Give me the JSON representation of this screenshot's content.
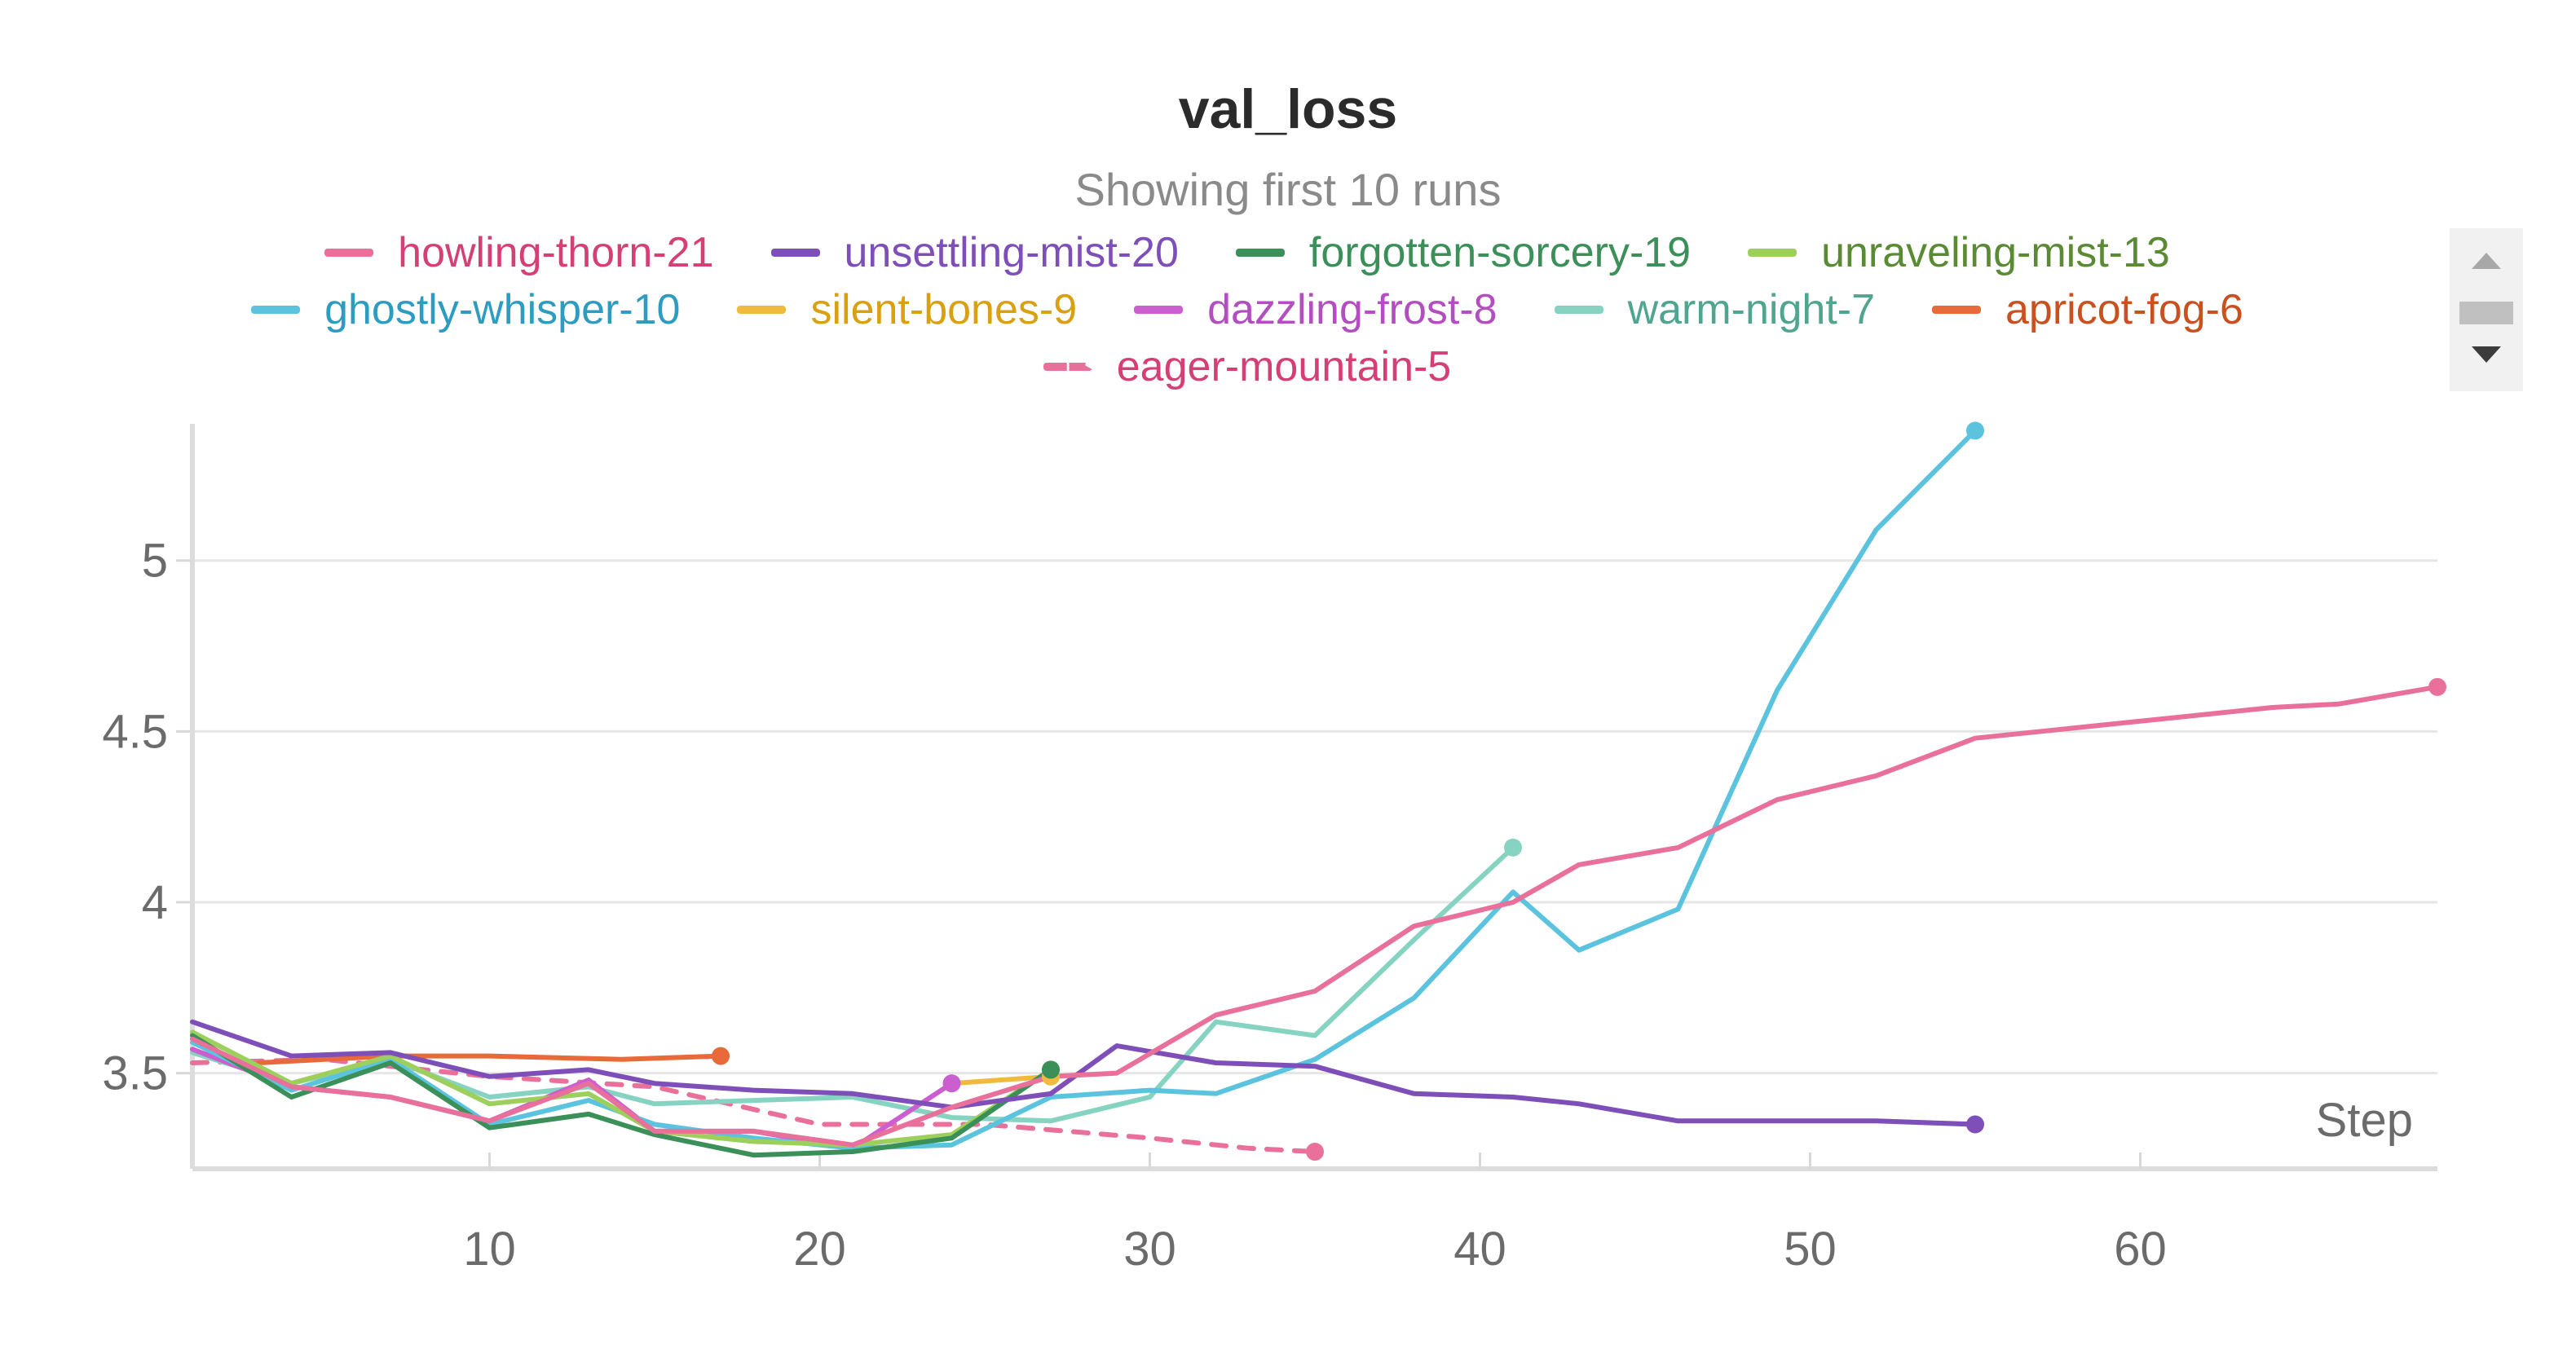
{
  "panel": {
    "title": "val_loss",
    "subtitle": "Showing first 10 runs"
  },
  "legend": {
    "rows": [
      [
        0,
        1,
        2,
        3
      ],
      [
        4,
        5,
        6,
        7,
        8
      ],
      [
        9
      ]
    ],
    "scroll_up_icon": "caret-up-icon",
    "scroll_down_icon": "caret-down-icon"
  },
  "chart_data": {
    "type": "line",
    "title": "val_loss",
    "subtitle": "Showing first 10 runs",
    "xlabel": "Step",
    "ylabel": "",
    "xlim": [
      1,
      69
    ],
    "ylim": [
      3.22,
      5.4
    ],
    "xticks": [
      10,
      20,
      30,
      40,
      50,
      60
    ],
    "yticks": [
      3.5,
      4,
      4.5,
      5
    ],
    "ytick_labels": [
      "3.5",
      "4",
      "4.5",
      "5"
    ],
    "grid": true,
    "legend_position": "top",
    "series": [
      {
        "name": "howling-thorn-21",
        "color": "#e8709a",
        "text_color": "#d43f75",
        "dashed": false,
        "x": [
          1,
          4,
          7,
          10,
          13,
          15,
          18,
          21,
          24,
          27,
          29,
          32,
          35,
          38,
          41,
          43,
          46,
          49,
          52,
          55,
          58,
          61,
          64,
          66,
          69
        ],
        "y": [
          3.6,
          3.46,
          3.43,
          3.36,
          3.47,
          3.33,
          3.33,
          3.29,
          3.4,
          3.49,
          3.5,
          3.67,
          3.74,
          3.93,
          4.0,
          4.11,
          4.16,
          4.3,
          4.37,
          4.48,
          4.51,
          4.54,
          4.57,
          4.58,
          4.63
        ]
      },
      {
        "name": "unsettling-mist-20",
        "color": "#7e4fb8",
        "text_color": "#7e4fb8",
        "dashed": false,
        "x": [
          1,
          4,
          7,
          10,
          13,
          15,
          18,
          21,
          24,
          27,
          29,
          32,
          35,
          38,
          41,
          43,
          46,
          49,
          52,
          55
        ],
        "y": [
          3.65,
          3.55,
          3.56,
          3.49,
          3.51,
          3.47,
          3.45,
          3.44,
          3.4,
          3.44,
          3.58,
          3.53,
          3.52,
          3.44,
          3.43,
          3.41,
          3.36,
          3.36,
          3.36,
          3.35
        ]
      },
      {
        "name": "forgotten-sorcery-19",
        "color": "#3b8f58",
        "text_color": "#3b8f58",
        "dashed": false,
        "x": [
          1,
          4,
          7,
          10,
          13,
          15,
          18,
          21,
          24,
          27
        ],
        "y": [
          3.61,
          3.43,
          3.53,
          3.34,
          3.38,
          3.32,
          3.26,
          3.27,
          3.31,
          3.51
        ]
      },
      {
        "name": "unraveling-mist-13",
        "color": "#9dcf5c",
        "text_color": "#5a8a34",
        "dashed": false,
        "x": [
          1,
          4,
          7,
          10,
          13,
          15,
          18,
          21,
          24,
          27
        ],
        "y": [
          3.62,
          3.47,
          3.55,
          3.41,
          3.44,
          3.33,
          3.3,
          3.29,
          3.32,
          3.51
        ]
      },
      {
        "name": "ghostly-whisper-10",
        "color": "#5bc3de",
        "text_color": "#2e9cc0",
        "dashed": false,
        "x": [
          1,
          4,
          7,
          10,
          13,
          15,
          18,
          21,
          24,
          27,
          30,
          32,
          35,
          38,
          41,
          43,
          46,
          49,
          52,
          55
        ],
        "y": [
          3.59,
          3.45,
          3.54,
          3.35,
          3.42,
          3.35,
          3.31,
          3.28,
          3.29,
          3.43,
          3.45,
          3.44,
          3.54,
          3.72,
          4.03,
          3.86,
          3.98,
          4.62,
          5.09,
          5.38
        ]
      },
      {
        "name": "silent-bones-9",
        "color": "#f0bb3c",
        "text_color": "#d9a012",
        "dashed": false,
        "x": [
          24,
          27
        ],
        "y": [
          3.47,
          3.49
        ]
      },
      {
        "name": "dazzling-frost-8",
        "color": "#cc5fd0",
        "text_color": "#b24ec0",
        "dashed": false,
        "x": [
          1,
          4,
          7,
          10,
          13,
          15,
          18,
          21,
          24
        ],
        "y": [
          3.57,
          3.46,
          3.43,
          3.36,
          3.48,
          3.33,
          3.33,
          3.28,
          3.47
        ]
      },
      {
        "name": "warm-night-7",
        "color": "#86d3c2",
        "text_color": "#4fa58f",
        "dashed": false,
        "x": [
          1,
          4,
          7,
          10,
          13,
          15,
          18,
          21,
          24,
          27,
          30,
          32,
          35,
          38,
          41
        ],
        "y": [
          3.56,
          3.47,
          3.54,
          3.43,
          3.46,
          3.41,
          3.42,
          3.43,
          3.37,
          3.36,
          3.43,
          3.65,
          3.61,
          3.89,
          4.16
        ]
      },
      {
        "name": "apricot-fog-6",
        "color": "#e86a3a",
        "text_color": "#c9511f",
        "dashed": false,
        "x": [
          3,
          7,
          10,
          14,
          17
        ],
        "y": [
          3.53,
          3.55,
          3.55,
          3.54,
          3.55
        ]
      },
      {
        "name": "eager-mountain-5",
        "color": "#e8709a",
        "text_color": "#d43f75",
        "dashed": true,
        "x": [
          1,
          5,
          10,
          15,
          20,
          25,
          30,
          33,
          35
        ],
        "y": [
          3.53,
          3.54,
          3.49,
          3.46,
          3.35,
          3.35,
          3.31,
          3.28,
          3.27
        ]
      }
    ]
  }
}
